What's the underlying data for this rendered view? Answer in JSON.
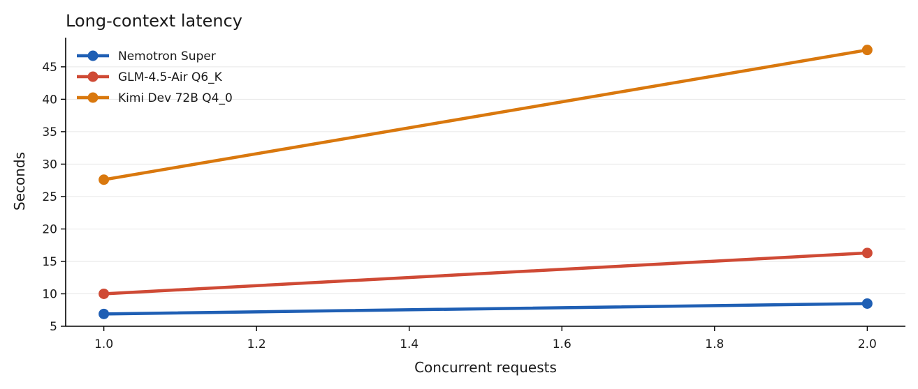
{
  "chart_data": {
    "type": "line",
    "title": "Long-context latency",
    "xlabel": "Concurrent requests",
    "ylabel": "Seconds",
    "xlim": [
      0.95,
      2.05
    ],
    "ylim": [
      5.0,
      49.5
    ],
    "xticks": [
      1.0,
      1.2,
      1.4,
      1.6,
      1.8,
      2.0
    ],
    "xtick_labels": [
      "1.0",
      "1.2",
      "1.4",
      "1.6",
      "1.8",
      "2.0"
    ],
    "yticks": [
      5,
      10,
      15,
      20,
      25,
      30,
      35,
      40,
      45
    ],
    "ytick_labels": [
      "5",
      "10",
      "15",
      "20",
      "25",
      "30",
      "35",
      "40",
      "45"
    ],
    "grid": "y",
    "legend_position": "top-left",
    "series": [
      {
        "name": "Nemotron Super",
        "color": "#1f5fb4",
        "x": [
          1.0,
          2.0
        ],
        "y": [
          6.9,
          8.5
        ]
      },
      {
        "name": "GLM-4.5-Air Q6_K",
        "color": "#cf4a35",
        "x": [
          1.0,
          2.0
        ],
        "y": [
          10.0,
          16.3
        ]
      },
      {
        "name": "Kimi Dev 72B Q4_0",
        "color": "#d9780e",
        "x": [
          1.0,
          2.0
        ],
        "y": [
          27.6,
          47.6
        ]
      }
    ]
  }
}
